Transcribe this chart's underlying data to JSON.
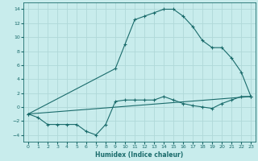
{
  "xlabel": "Humidex (Indice chaleur)",
  "background_color": "#c8ecec",
  "grid_color": "#b0d8d8",
  "line_color": "#1a6b6b",
  "xlim": [
    -0.5,
    23.5
  ],
  "ylim": [
    -5,
    15
  ],
  "xticks": [
    0,
    1,
    2,
    3,
    4,
    5,
    6,
    7,
    8,
    9,
    10,
    11,
    12,
    13,
    14,
    15,
    16,
    17,
    18,
    19,
    20,
    21,
    22,
    23
  ],
  "yticks": [
    -4,
    -2,
    0,
    2,
    4,
    6,
    8,
    10,
    12,
    14
  ],
  "line1_x": [
    0,
    1,
    2,
    3,
    4,
    5,
    6,
    7,
    8,
    9,
    10,
    11,
    12,
    13,
    14,
    15,
    16,
    17,
    18,
    19,
    20,
    21,
    22,
    23
  ],
  "line1_y": [
    -1,
    -1.5,
    -2.5,
    -2.5,
    -2.5,
    -2.5,
    -3.5,
    -4,
    -2.5,
    0.8,
    1,
    1,
    1,
    1,
    1.5,
    1,
    0.5,
    0.2,
    0,
    -0.2,
    0.5,
    1,
    1.5,
    1.5
  ],
  "line2_x": [
    0,
    9,
    10,
    11,
    12,
    13,
    14,
    15,
    16,
    17,
    18,
    19,
    20,
    21,
    22,
    23
  ],
  "line2_y": [
    -1,
    5.5,
    9,
    12.5,
    13,
    13.5,
    14,
    14,
    13,
    11.5,
    9.5,
    8.5,
    8.5,
    7,
    5,
    1.5
  ],
  "line3_x": [
    0,
    23
  ],
  "line3_y": [
    -1,
    1.5
  ]
}
